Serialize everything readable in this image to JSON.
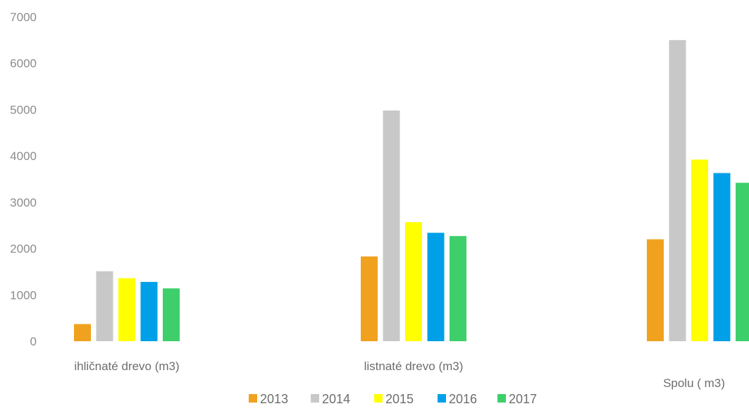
{
  "chart_data": {
    "type": "bar",
    "categories": [
      "ihličnaté drevo (m3)",
      "listnaté drevo (m3)",
      "Spolu ( m3)"
    ],
    "series": [
      {
        "name": "2013",
        "color": "#f0a21f",
        "values": [
          370,
          1830,
          2200
        ]
      },
      {
        "name": "2014",
        "color": "#c8c8c8",
        "values": [
          1510,
          4980,
          6500
        ]
      },
      {
        "name": "2015",
        "color": "#ffff00",
        "values": [
          1360,
          2570,
          3920
        ]
      },
      {
        "name": "2016",
        "color": "#00a0e8",
        "values": [
          1280,
          2340,
          3630
        ]
      },
      {
        "name": "2017",
        "color": "#3ecf6b",
        "values": [
          1140,
          2270,
          3420
        ]
      }
    ],
    "y_ticks": [
      "0",
      "1000",
      "2000",
      "3000",
      "4000",
      "5000",
      "6000",
      "7000"
    ],
    "ylim": [
      0,
      7000
    ],
    "grid": false,
    "legend_position": "bottom"
  }
}
